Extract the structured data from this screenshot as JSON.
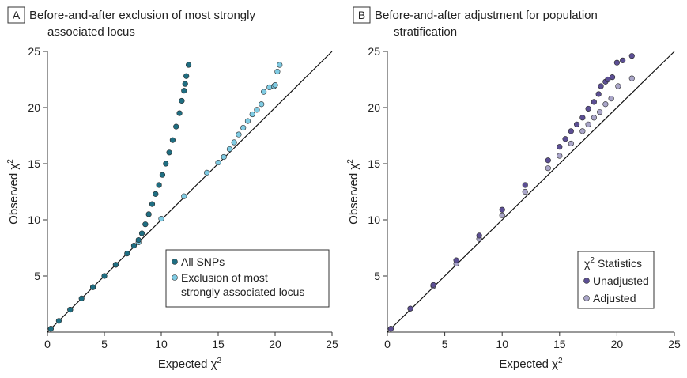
{
  "chart_data": [
    {
      "type": "scatter",
      "panel_label": "A",
      "title": [
        "Before-and-after exclusion of most strongly",
        "associated locus"
      ],
      "xlabel": "Expected χ",
      "ylabel": "Observed χ",
      "label_superscript": "2",
      "xlim": [
        0,
        25
      ],
      "ylim": [
        0,
        25
      ],
      "xticks": [
        "0",
        "5",
        "10",
        "15",
        "20",
        "25"
      ],
      "yticks": [
        "5",
        "10",
        "15",
        "20",
        "25"
      ],
      "reference_line": "y = x",
      "legend_position": "bottom-right",
      "legend_title": "",
      "series": [
        {
          "name": "All SNPs",
          "color": "#1f6e82",
          "points": [
            [
              0.3,
              0.3
            ],
            [
              1,
              1
            ],
            [
              2,
              2
            ],
            [
              3,
              3
            ],
            [
              4,
              4
            ],
            [
              5,
              5
            ],
            [
              6,
              6
            ],
            [
              7,
              7
            ],
            [
              7.6,
              7.7
            ],
            [
              8,
              8.2
            ],
            [
              8.3,
              8.8
            ],
            [
              8.6,
              9.6
            ],
            [
              8.9,
              10.5
            ],
            [
              9.2,
              11.4
            ],
            [
              9.5,
              12.3
            ],
            [
              9.8,
              13.1
            ],
            [
              10.1,
              14.0
            ],
            [
              10.4,
              15.0
            ],
            [
              10.7,
              16.0
            ],
            [
              11,
              17.1
            ],
            [
              11.3,
              18.3
            ],
            [
              11.6,
              19.5
            ],
            [
              11.8,
              20.6
            ],
            [
              12,
              21.5
            ],
            [
              12.1,
              22.1
            ],
            [
              12.2,
              22.8
            ],
            [
              12.4,
              23.8
            ]
          ]
        },
        {
          "name": "Exclusion of most strongly associated locus",
          "display_lines": [
            "Exclusion of most",
            "strongly associated locus"
          ],
          "color": "#7fcbe3",
          "points": [
            [
              0.3,
              0.3
            ],
            [
              2,
              2
            ],
            [
              4,
              4
            ],
            [
              6,
              6
            ],
            [
              8,
              8
            ],
            [
              10,
              10.1
            ],
            [
              12,
              12.1
            ],
            [
              14,
              14.2
            ],
            [
              15,
              15.1
            ],
            [
              15.5,
              15.6
            ],
            [
              16,
              16.3
            ],
            [
              16.4,
              16.9
            ],
            [
              16.8,
              17.6
            ],
            [
              17.2,
              18.2
            ],
            [
              17.6,
              18.8
            ],
            [
              18,
              19.4
            ],
            [
              18.4,
              19.8
            ],
            [
              18.8,
              20.3
            ],
            [
              19,
              21.4
            ],
            [
              19.5,
              21.8
            ],
            [
              19.9,
              21.9
            ],
            [
              20,
              22.0
            ],
            [
              20.2,
              23.2
            ],
            [
              20.4,
              23.8
            ]
          ]
        }
      ]
    },
    {
      "type": "scatter",
      "panel_label": "B",
      "title": [
        "Before-and-after adjustment for population",
        "stratification"
      ],
      "xlabel": "Expected χ",
      "ylabel": "Observed χ",
      "label_superscript": "2",
      "xlim": [
        0,
        25
      ],
      "ylim": [
        0,
        25
      ],
      "xticks": [
        "0",
        "5",
        "10",
        "15",
        "20",
        "25"
      ],
      "yticks": [
        "5",
        "10",
        "15",
        "20",
        "25"
      ],
      "reference_line": "y = x",
      "legend_position": "bottom-right",
      "legend_title": "χ Statistics",
      "series": [
        {
          "name": "Unadjusted",
          "color": "#5c4f94",
          "points": [
            [
              0.3,
              0.3
            ],
            [
              2,
              2.1
            ],
            [
              4,
              4.2
            ],
            [
              6,
              6.4
            ],
            [
              8,
              8.6
            ],
            [
              10,
              10.9
            ],
            [
              12,
              13.1
            ],
            [
              14,
              15.3
            ],
            [
              15,
              16.5
            ],
            [
              15.5,
              17.2
            ],
            [
              16,
              17.9
            ],
            [
              16.5,
              18.5
            ],
            [
              17,
              19.1
            ],
            [
              17.5,
              19.9
            ],
            [
              18,
              20.5
            ],
            [
              18.4,
              21.2
            ],
            [
              18.6,
              21.9
            ],
            [
              19,
              22.3
            ],
            [
              19.2,
              22.5
            ],
            [
              19.6,
              22.7
            ],
            [
              20,
              24.0
            ],
            [
              20.5,
              24.2
            ],
            [
              21.3,
              24.6
            ]
          ]
        },
        {
          "name": "Adjusted",
          "color": "#aaa6c9",
          "points": [
            [
              0.3,
              0.3
            ],
            [
              2,
              2.1
            ],
            [
              4,
              4.1
            ],
            [
              6,
              6.1
            ],
            [
              8,
              8.3
            ],
            [
              10,
              10.4
            ],
            [
              12,
              12.5
            ],
            [
              14,
              14.6
            ],
            [
              15,
              15.7
            ],
            [
              16,
              16.8
            ],
            [
              17,
              17.9
            ],
            [
              17.5,
              18.5
            ],
            [
              18,
              19.1
            ],
            [
              18.5,
              19.6
            ],
            [
              19,
              20.3
            ],
            [
              19.5,
              20.8
            ],
            [
              20.1,
              21.9
            ],
            [
              21.3,
              22.6
            ]
          ]
        }
      ]
    }
  ]
}
